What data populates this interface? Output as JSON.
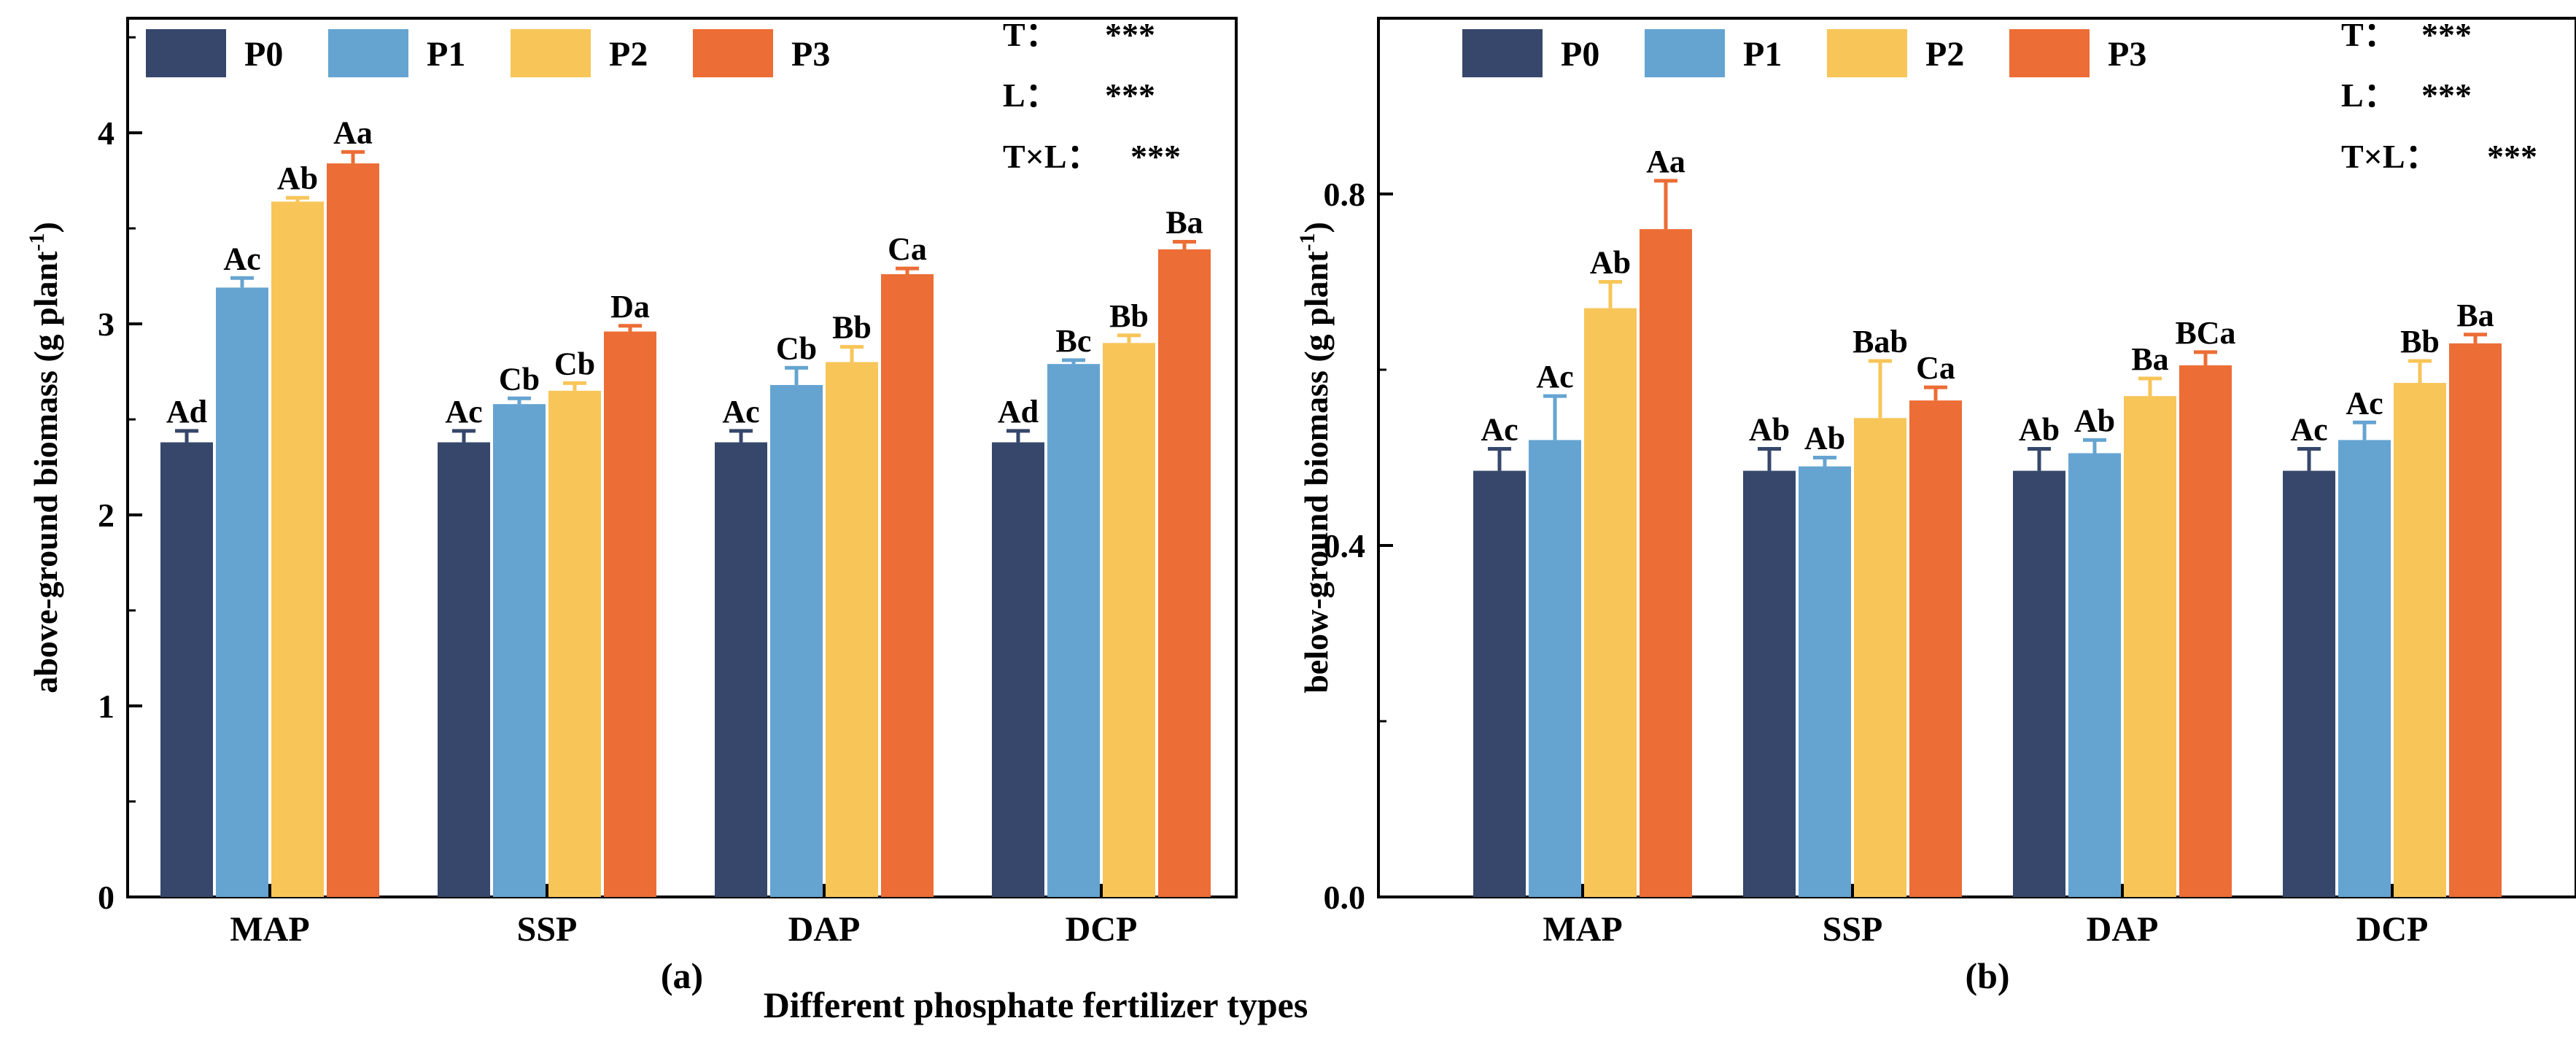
{
  "figure": {
    "shared_xlabel": "Different phosphate fertilizer types"
  },
  "chart_data": [
    {
      "type": "bar",
      "panel_label": "(a)",
      "ylabel": "above-ground biomass (g plant",
      "ylabel_sup": "-1",
      "ylabel_close": ")",
      "xlabel": "Different phosphate fertilizer types",
      "ylim": [
        0,
        4.6
      ],
      "yticks": [
        0,
        1,
        2,
        3,
        4
      ],
      "ytick_labels": [
        "0",
        "1",
        "2",
        "3",
        "4"
      ],
      "categories": [
        "MAP",
        "SSP",
        "DAP",
        "DCP"
      ],
      "legend_position": "top-left",
      "series": [
        {
          "name": "P0",
          "color": "#36476B",
          "values": [
            2.38,
            2.38,
            2.38,
            2.38
          ],
          "errors": [
            0.06,
            0.06,
            0.06,
            0.06
          ],
          "labels": [
            "Ad",
            "Ac",
            "Ac",
            "Ad"
          ]
        },
        {
          "name": "P1",
          "color": "#65A4D1",
          "values": [
            3.19,
            2.58,
            2.68,
            2.79
          ],
          "errors": [
            0.05,
            0.03,
            0.09,
            0.02
          ],
          "labels": [
            "Ac",
            "Cb",
            "Cb",
            "Bc"
          ]
        },
        {
          "name": "P2",
          "color": "#F8C558",
          "values": [
            3.64,
            2.65,
            2.8,
            2.9
          ],
          "errors": [
            0.02,
            0.04,
            0.08,
            0.04
          ],
          "labels": [
            "Ab",
            "Cb",
            "Bb",
            "Bb"
          ]
        },
        {
          "name": "P3",
          "color": "#EC6D35",
          "values": [
            3.84,
            2.96,
            3.26,
            3.39
          ],
          "errors": [
            0.06,
            0.03,
            0.03,
            0.04
          ],
          "labels": [
            "Aa",
            "Da",
            "Ca",
            "Ba"
          ]
        }
      ],
      "significance": [
        {
          "label": "T：",
          "value": "***"
        },
        {
          "label": "L：",
          "value": "***"
        },
        {
          "label": "T×L：",
          "value": "***"
        }
      ]
    },
    {
      "type": "bar",
      "panel_label": "(b)",
      "ylabel": "below-ground biomass (g plant",
      "ylabel_sup": "-1",
      "ylabel_close": ")",
      "xlabel": "Different phosphate fertilizer types",
      "ylim": [
        0,
        1.0
      ],
      "yticks": [
        0.0,
        0.4,
        0.8
      ],
      "ytick_labels": [
        "0.0",
        "0.4",
        "0.8"
      ],
      "categories": [
        "MAP",
        "SSP",
        "DAP",
        "DCP"
      ],
      "legend_position": "top-left",
      "series": [
        {
          "name": "P0",
          "color": "#36476B",
          "values": [
            0.485,
            0.485,
            0.485,
            0.485
          ],
          "errors": [
            0.025,
            0.025,
            0.025,
            0.025
          ],
          "labels": [
            "Ac",
            "Ab",
            "Ab",
            "Ac"
          ]
        },
        {
          "name": "P1",
          "color": "#65A4D1",
          "values": [
            0.52,
            0.49,
            0.505,
            0.52
          ],
          "errors": [
            0.05,
            0.01,
            0.015,
            0.02
          ],
          "labels": [
            "Ac",
            "Ab",
            "Ab",
            "Ac"
          ]
        },
        {
          "name": "P2",
          "color": "#F8C558",
          "values": [
            0.67,
            0.545,
            0.57,
            0.585
          ],
          "errors": [
            0.03,
            0.065,
            0.02,
            0.025
          ],
          "labels": [
            "Ab",
            "Bab",
            "Ba",
            "Bb"
          ]
        },
        {
          "name": "P3",
          "color": "#EC6D35",
          "values": [
            0.76,
            0.565,
            0.605,
            0.63
          ],
          "errors": [
            0.055,
            0.015,
            0.015,
            0.01
          ],
          "labels": [
            "Aa",
            "Ca",
            "BCa",
            "Ba"
          ]
        }
      ],
      "significance": [
        {
          "label": "T：",
          "value": "***"
        },
        {
          "label": "L：",
          "value": "***"
        },
        {
          "label": "T×L：",
          "value": "***"
        }
      ]
    }
  ]
}
